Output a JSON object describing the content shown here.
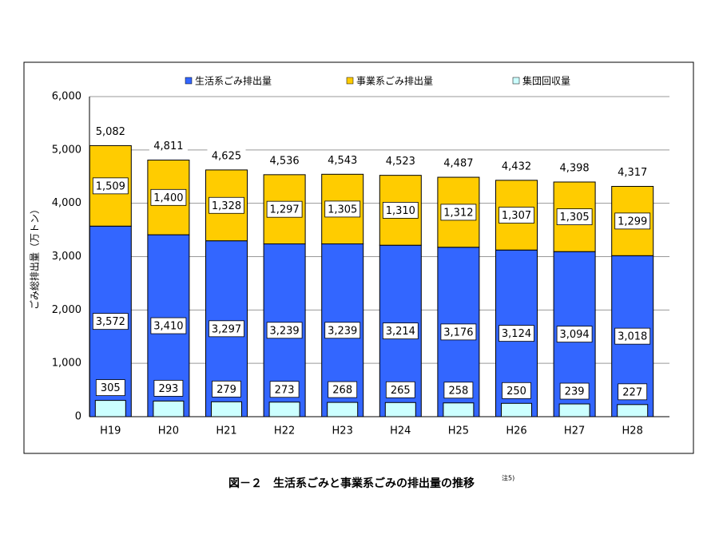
{
  "chart_data": {
    "type": "bar",
    "y_label": "ごみ総排出量（万トン）",
    "caption": "図－２　生活系ごみと事業系ごみの排出量の推移",
    "caption_note": "注5)",
    "categories": [
      "H19",
      "H20",
      "H21",
      "H22",
      "H23",
      "H24",
      "H25",
      "H26",
      "H27",
      "H28"
    ],
    "series": [
      {
        "name": "生活系ごみ排出量",
        "color": "#3366ff",
        "values": [
          3572,
          3410,
          3297,
          3239,
          3239,
          3214,
          3176,
          3124,
          3094,
          3018
        ],
        "value_labels": [
          "3,572",
          "3,410",
          "3,297",
          "3,239",
          "3,239",
          "3,214",
          "3,176",
          "3,124",
          "3,094",
          "3,018"
        ]
      },
      {
        "name": "事業系ごみ排出量",
        "color": "#ffcc00",
        "values": [
          1509,
          1400,
          1328,
          1297,
          1305,
          1310,
          1312,
          1307,
          1305,
          1299
        ],
        "value_labels": [
          "1,509",
          "1,400",
          "1,328",
          "1,297",
          "1,305",
          "1,310",
          "1,312",
          "1,307",
          "1,305",
          "1,299"
        ]
      },
      {
        "name": "集団回収量",
        "color": "#ccffff",
        "values": [
          305,
          293,
          279,
          273,
          268,
          265,
          258,
          250,
          239,
          227
        ]
      }
    ],
    "totals": [
      5082,
      4811,
      4625,
      4536,
      4543,
      4523,
      4487,
      4432,
      4398,
      4317
    ],
    "total_labels": [
      "5,082",
      "4,811",
      "4,625",
      "4,536",
      "4,543",
      "4,523",
      "4,487",
      "4,432",
      "4,398",
      "4,317"
    ],
    "ylim": [
      0,
      6000
    ],
    "yticks": [
      0,
      {
        "value": 1000,
        "label": "1,000"
      },
      {
        "value": 2000,
        "label": "2,000"
      },
      {
        "value": 3000,
        "label": "3,000"
      },
      {
        "value": 4000,
        "label": "4,000"
      },
      {
        "value": 5000,
        "label": "5,000"
      },
      {
        "value": 6000,
        "label": "6,000"
      }
    ],
    "grid": true
  }
}
